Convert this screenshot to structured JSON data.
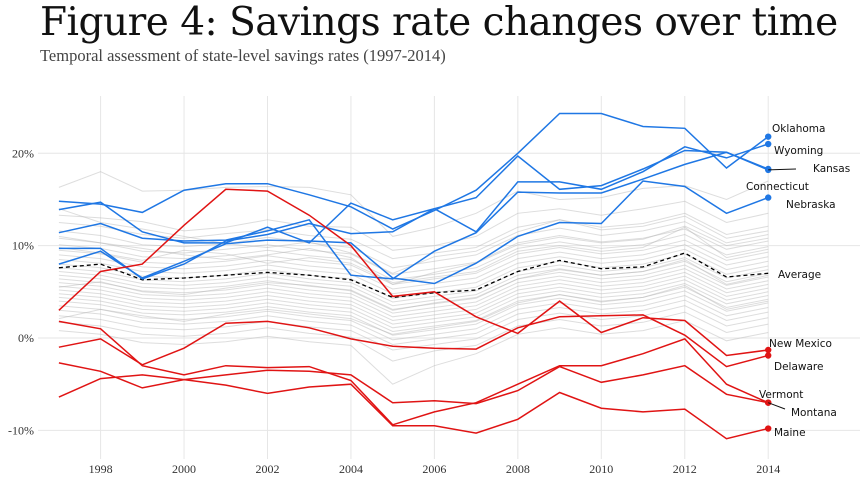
{
  "title": "Figure 4: Savings rate changes over time",
  "subtitle": "Temporal assessment of state-level savings rates (1997-2014)",
  "colors": {
    "high": "#1f77e4",
    "low": "#e01414",
    "background": "#b4b4b4",
    "average": "#000000",
    "grid": "#e6e6e6"
  },
  "chart_data": {
    "type": "line",
    "title": "Figure 4: Savings rate changes over time",
    "subtitle": "Temporal assessment of state-level savings rates (1997-2014)",
    "xlabel": "",
    "ylabel": "",
    "xlim": [
      1996.5,
      2016.2
    ],
    "ylim": [
      -0.131,
      0.262
    ],
    "x_ticks": [
      1998,
      2000,
      2002,
      2004,
      2006,
      2008,
      2010,
      2012,
      2014
    ],
    "y_ticks": [
      -0.1,
      0,
      0.1,
      0.2
    ],
    "y_tick_labels": [
      "-10%",
      "0%",
      "10%",
      "20%"
    ],
    "grid": true,
    "legend": "none; series labelled directly at the 2014 end point",
    "years": [
      1997,
      1998,
      1999,
      2000,
      2001,
      2002,
      2003,
      2004,
      2005,
      2006,
      2007,
      2008,
      2009,
      2010,
      2011,
      2012,
      2013,
      2014
    ],
    "highlighted_series": [
      {
        "name": "Oklahoma",
        "group": "high",
        "values": [
          0.148,
          0.145,
          0.136,
          0.16,
          0.167,
          0.167,
          0.155,
          0.142,
          0.118,
          0.138,
          0.16,
          0.2,
          0.243,
          0.243,
          0.229,
          0.227,
          0.184,
          0.218
        ]
      },
      {
        "name": "Wyoming",
        "group": "high",
        "values": [
          0.139,
          0.147,
          0.115,
          0.103,
          0.103,
          0.12,
          0.103,
          0.146,
          0.128,
          0.14,
          0.115,
          0.169,
          0.169,
          0.161,
          0.18,
          0.207,
          0.195,
          0.21
        ]
      },
      {
        "name": "Kansas",
        "group": "high",
        "values": [
          0.097,
          0.097,
          0.064,
          0.08,
          0.105,
          0.112,
          0.124,
          0.113,
          0.115,
          0.14,
          0.152,
          0.197,
          0.161,
          0.165,
          0.183,
          0.203,
          0.201,
          0.182
        ]
      },
      {
        "name": "Connecticut",
        "group": "high",
        "values": [
          0.114,
          0.124,
          0.108,
          0.105,
          0.106,
          0.116,
          0.128,
          0.068,
          0.064,
          0.094,
          0.114,
          0.158,
          0.157,
          0.157,
          0.172,
          0.188,
          0.201,
          0.183
        ]
      },
      {
        "name": "Nebraska",
        "group": "high",
        "values": [
          0.08,
          0.094,
          0.065,
          0.083,
          0.102,
          0.106,
          0.105,
          0.103,
          0.065,
          0.059,
          0.081,
          0.11,
          0.125,
          0.124,
          0.17,
          0.164,
          0.135,
          0.152
        ]
      },
      {
        "name": "New Mexico",
        "group": "low",
        "values": [
          0.03,
          0.072,
          0.08,
          0.122,
          0.161,
          0.159,
          0.133,
          0.1,
          0.045,
          0.05,
          0.023,
          0.005,
          0.04,
          0.006,
          0.022,
          0.019,
          -0.019,
          -0.013
        ]
      },
      {
        "name": "Delaware",
        "group": "low",
        "values": [
          -0.01,
          -0.001,
          -0.029,
          -0.011,
          0.016,
          0.018,
          0.011,
          -0.001,
          -0.009,
          -0.011,
          -0.012,
          0.011,
          0.023,
          0.024,
          0.025,
          0.003,
          -0.031,
          -0.019
        ]
      },
      {
        "name": "Vermont",
        "group": "low",
        "values": [
          0.018,
          0.01,
          -0.03,
          -0.04,
          -0.03,
          -0.032,
          -0.031,
          -0.046,
          -0.094,
          -0.08,
          -0.07,
          -0.05,
          -0.03,
          -0.03,
          -0.017,
          -0.001,
          -0.05,
          -0.07
        ]
      },
      {
        "name": "Montana",
        "group": "low",
        "values": [
          -0.027,
          -0.036,
          -0.054,
          -0.045,
          -0.04,
          -0.035,
          -0.036,
          -0.04,
          -0.07,
          -0.068,
          -0.071,
          -0.057,
          -0.031,
          -0.048,
          -0.04,
          -0.03,
          -0.061,
          -0.07
        ]
      },
      {
        "name": "Maine",
        "group": "low",
        "values": [
          -0.064,
          -0.044,
          -0.04,
          -0.045,
          -0.051,
          -0.06,
          -0.053,
          -0.05,
          -0.095,
          -0.095,
          -0.103,
          -0.088,
          -0.059,
          -0.076,
          -0.08,
          -0.077,
          -0.109,
          -0.098
        ]
      }
    ],
    "average": {
      "name": "Average",
      "values": [
        0.076,
        0.08,
        0.063,
        0.065,
        0.068,
        0.071,
        0.068,
        0.063,
        0.044,
        0.049,
        0.052,
        0.072,
        0.084,
        0.075,
        0.077,
        0.092,
        0.066,
        0.07
      ]
    },
    "background_series": [
      [
        0.163,
        0.18,
        0.159,
        0.16,
        0.163,
        0.164,
        0.163,
        0.155,
        0.11,
        0.12,
        0.135,
        0.159,
        0.15,
        0.152,
        0.162,
        0.165,
        0.15,
        0.17
      ],
      [
        0.133,
        0.13,
        0.126,
        0.116,
        0.12,
        0.128,
        0.121,
        0.12,
        0.095,
        0.1,
        0.11,
        0.135,
        0.14,
        0.133,
        0.14,
        0.148,
        0.125,
        0.135
      ],
      [
        0.125,
        0.121,
        0.112,
        0.108,
        0.113,
        0.117,
        0.111,
        0.107,
        0.086,
        0.092,
        0.098,
        0.12,
        0.128,
        0.12,
        0.124,
        0.135,
        0.112,
        0.121
      ],
      [
        0.116,
        0.111,
        0.101,
        0.099,
        0.102,
        0.109,
        0.103,
        0.098,
        0.076,
        0.083,
        0.09,
        0.111,
        0.119,
        0.111,
        0.116,
        0.126,
        0.103,
        0.112
      ],
      [
        0.108,
        0.103,
        0.094,
        0.092,
        0.096,
        0.101,
        0.095,
        0.091,
        0.069,
        0.075,
        0.082,
        0.103,
        0.111,
        0.104,
        0.108,
        0.118,
        0.096,
        0.105
      ],
      [
        0.101,
        0.097,
        0.088,
        0.086,
        0.089,
        0.095,
        0.089,
        0.085,
        0.063,
        0.069,
        0.076,
        0.097,
        0.104,
        0.097,
        0.101,
        0.112,
        0.09,
        0.099
      ],
      [
        0.095,
        0.091,
        0.082,
        0.08,
        0.083,
        0.089,
        0.083,
        0.079,
        0.058,
        0.064,
        0.07,
        0.091,
        0.098,
        0.091,
        0.095,
        0.106,
        0.084,
        0.093
      ],
      [
        0.09,
        0.086,
        0.077,
        0.075,
        0.078,
        0.084,
        0.078,
        0.074,
        0.053,
        0.059,
        0.065,
        0.086,
        0.093,
        0.086,
        0.09,
        0.101,
        0.079,
        0.088
      ],
      [
        0.085,
        0.081,
        0.072,
        0.07,
        0.073,
        0.079,
        0.073,
        0.069,
        0.048,
        0.054,
        0.06,
        0.081,
        0.088,
        0.081,
        0.085,
        0.096,
        0.074,
        0.083
      ],
      [
        0.08,
        0.076,
        0.067,
        0.065,
        0.068,
        0.074,
        0.068,
        0.064,
        0.043,
        0.049,
        0.055,
        0.076,
        0.083,
        0.076,
        0.08,
        0.091,
        0.069,
        0.078
      ],
      [
        0.076,
        0.072,
        0.063,
        0.061,
        0.064,
        0.07,
        0.064,
        0.06,
        0.039,
        0.045,
        0.051,
        0.072,
        0.079,
        0.072,
        0.076,
        0.087,
        0.065,
        0.074
      ],
      [
        0.072,
        0.068,
        0.059,
        0.057,
        0.06,
        0.066,
        0.06,
        0.056,
        0.035,
        0.041,
        0.047,
        0.068,
        0.075,
        0.068,
        0.072,
        0.083,
        0.061,
        0.07
      ],
      [
        0.068,
        0.064,
        0.055,
        0.053,
        0.056,
        0.062,
        0.056,
        0.052,
        0.031,
        0.037,
        0.043,
        0.064,
        0.071,
        0.064,
        0.068,
        0.079,
        0.057,
        0.066
      ],
      [
        0.064,
        0.06,
        0.051,
        0.049,
        0.052,
        0.058,
        0.052,
        0.048,
        0.027,
        0.033,
        0.039,
        0.06,
        0.067,
        0.06,
        0.064,
        0.075,
        0.053,
        0.062
      ],
      [
        0.06,
        0.056,
        0.047,
        0.045,
        0.048,
        0.054,
        0.048,
        0.044,
        0.023,
        0.029,
        0.035,
        0.056,
        0.063,
        0.056,
        0.06,
        0.071,
        0.049,
        0.058
      ],
      [
        0.056,
        0.052,
        0.043,
        0.041,
        0.044,
        0.05,
        0.044,
        0.04,
        0.019,
        0.025,
        0.031,
        0.052,
        0.059,
        0.052,
        0.056,
        0.067,
        0.045,
        0.054
      ],
      [
        0.052,
        0.048,
        0.039,
        0.037,
        0.04,
        0.046,
        0.04,
        0.036,
        0.015,
        0.021,
        0.027,
        0.048,
        0.055,
        0.048,
        0.052,
        0.063,
        0.041,
        0.05
      ],
      [
        0.048,
        0.044,
        0.035,
        0.033,
        0.036,
        0.042,
        0.036,
        0.032,
        0.011,
        0.017,
        0.023,
        0.044,
        0.051,
        0.044,
        0.048,
        0.059,
        0.037,
        0.046
      ],
      [
        0.044,
        0.04,
        0.031,
        0.029,
        0.032,
        0.038,
        0.032,
        0.028,
        0.007,
        0.013,
        0.019,
        0.04,
        0.047,
        0.04,
        0.044,
        0.055,
        0.033,
        0.042
      ],
      [
        0.04,
        0.036,
        0.027,
        0.025,
        0.028,
        0.034,
        0.028,
        0.024,
        0.003,
        0.009,
        0.015,
        0.036,
        0.043,
        0.036,
        0.04,
        0.051,
        0.029,
        0.038
      ],
      [
        0.035,
        0.031,
        0.022,
        0.02,
        0.023,
        0.029,
        0.023,
        0.019,
        -0.002,
        0.004,
        0.01,
        0.031,
        0.038,
        0.031,
        0.035,
        0.046,
        0.024,
        0.033
      ],
      [
        0.03,
        0.026,
        0.017,
        0.015,
        0.018,
        0.024,
        0.018,
        0.014,
        -0.007,
        -0.001,
        0.005,
        0.026,
        0.033,
        0.026,
        0.03,
        0.041,
        0.019,
        0.028
      ],
      [
        0.024,
        0.02,
        0.011,
        0.009,
        0.012,
        0.018,
        0.012,
        0.008,
        -0.013,
        -0.007,
        -0.001,
        0.02,
        0.027,
        0.02,
        0.024,
        0.035,
        0.013,
        0.022
      ],
      [
        0.017,
        0.013,
        0.004,
        0.002,
        0.005,
        0.011,
        0.005,
        0.001,
        -0.025,
        -0.014,
        -0.008,
        0.013,
        0.02,
        0.013,
        0.017,
        0.028,
        0.006,
        0.015
      ],
      [
        0.008,
        0.004,
        -0.005,
        -0.007,
        -0.004,
        0.002,
        -0.004,
        -0.008,
        -0.05,
        -0.03,
        -0.017,
        0.004,
        0.011,
        0.004,
        0.008,
        0.019,
        -0.003,
        0.006
      ],
      [
        0.14,
        0.125,
        0.118,
        0.11,
        0.102,
        0.098,
        0.104,
        0.092,
        0.07,
        0.088,
        0.094,
        0.115,
        0.128,
        0.117,
        0.121,
        0.132,
        0.108,
        0.116
      ],
      [
        0.098,
        0.092,
        0.084,
        0.095,
        0.091,
        0.081,
        0.087,
        0.081,
        0.06,
        0.066,
        0.072,
        0.094,
        0.1,
        0.094,
        0.098,
        0.12,
        0.087,
        0.096
      ],
      [
        0.055,
        0.061,
        0.05,
        0.047,
        0.054,
        0.06,
        0.057,
        0.051,
        0.03,
        0.038,
        0.044,
        0.064,
        0.074,
        0.068,
        0.072,
        0.085,
        0.058,
        0.068
      ],
      [
        0.021,
        0.031,
        0.024,
        0.018,
        0.026,
        0.031,
        0.026,
        0.021,
        0.004,
        0.011,
        0.018,
        0.038,
        0.047,
        0.039,
        0.044,
        0.057,
        0.031,
        0.04
      ],
      [
        0.11,
        0.103,
        0.097,
        0.09,
        0.085,
        0.09,
        0.097,
        0.087,
        0.058,
        0.071,
        0.081,
        0.101,
        0.109,
        0.103,
        0.107,
        0.121,
        0.1,
        0.108
      ]
    ],
    "end_labels": [
      {
        "text": "Oklahoma",
        "series": "Oklahoma"
      },
      {
        "text": "Wyoming",
        "series": "Wyoming"
      },
      {
        "text": "Kansas",
        "series": "Kansas"
      },
      {
        "text": "Connecticut",
        "series": "Connecticut"
      },
      {
        "text": "Nebraska",
        "series": "Nebraska"
      },
      {
        "text": "Average",
        "series": "Average"
      },
      {
        "text": "New Mexico",
        "series": "New Mexico"
      },
      {
        "text": "Delaware",
        "series": "Delaware"
      },
      {
        "text": "Vermont",
        "series": "Vermont"
      },
      {
        "text": "Montana",
        "series": "Montana"
      },
      {
        "text": "Maine",
        "series": "Maine"
      }
    ]
  }
}
